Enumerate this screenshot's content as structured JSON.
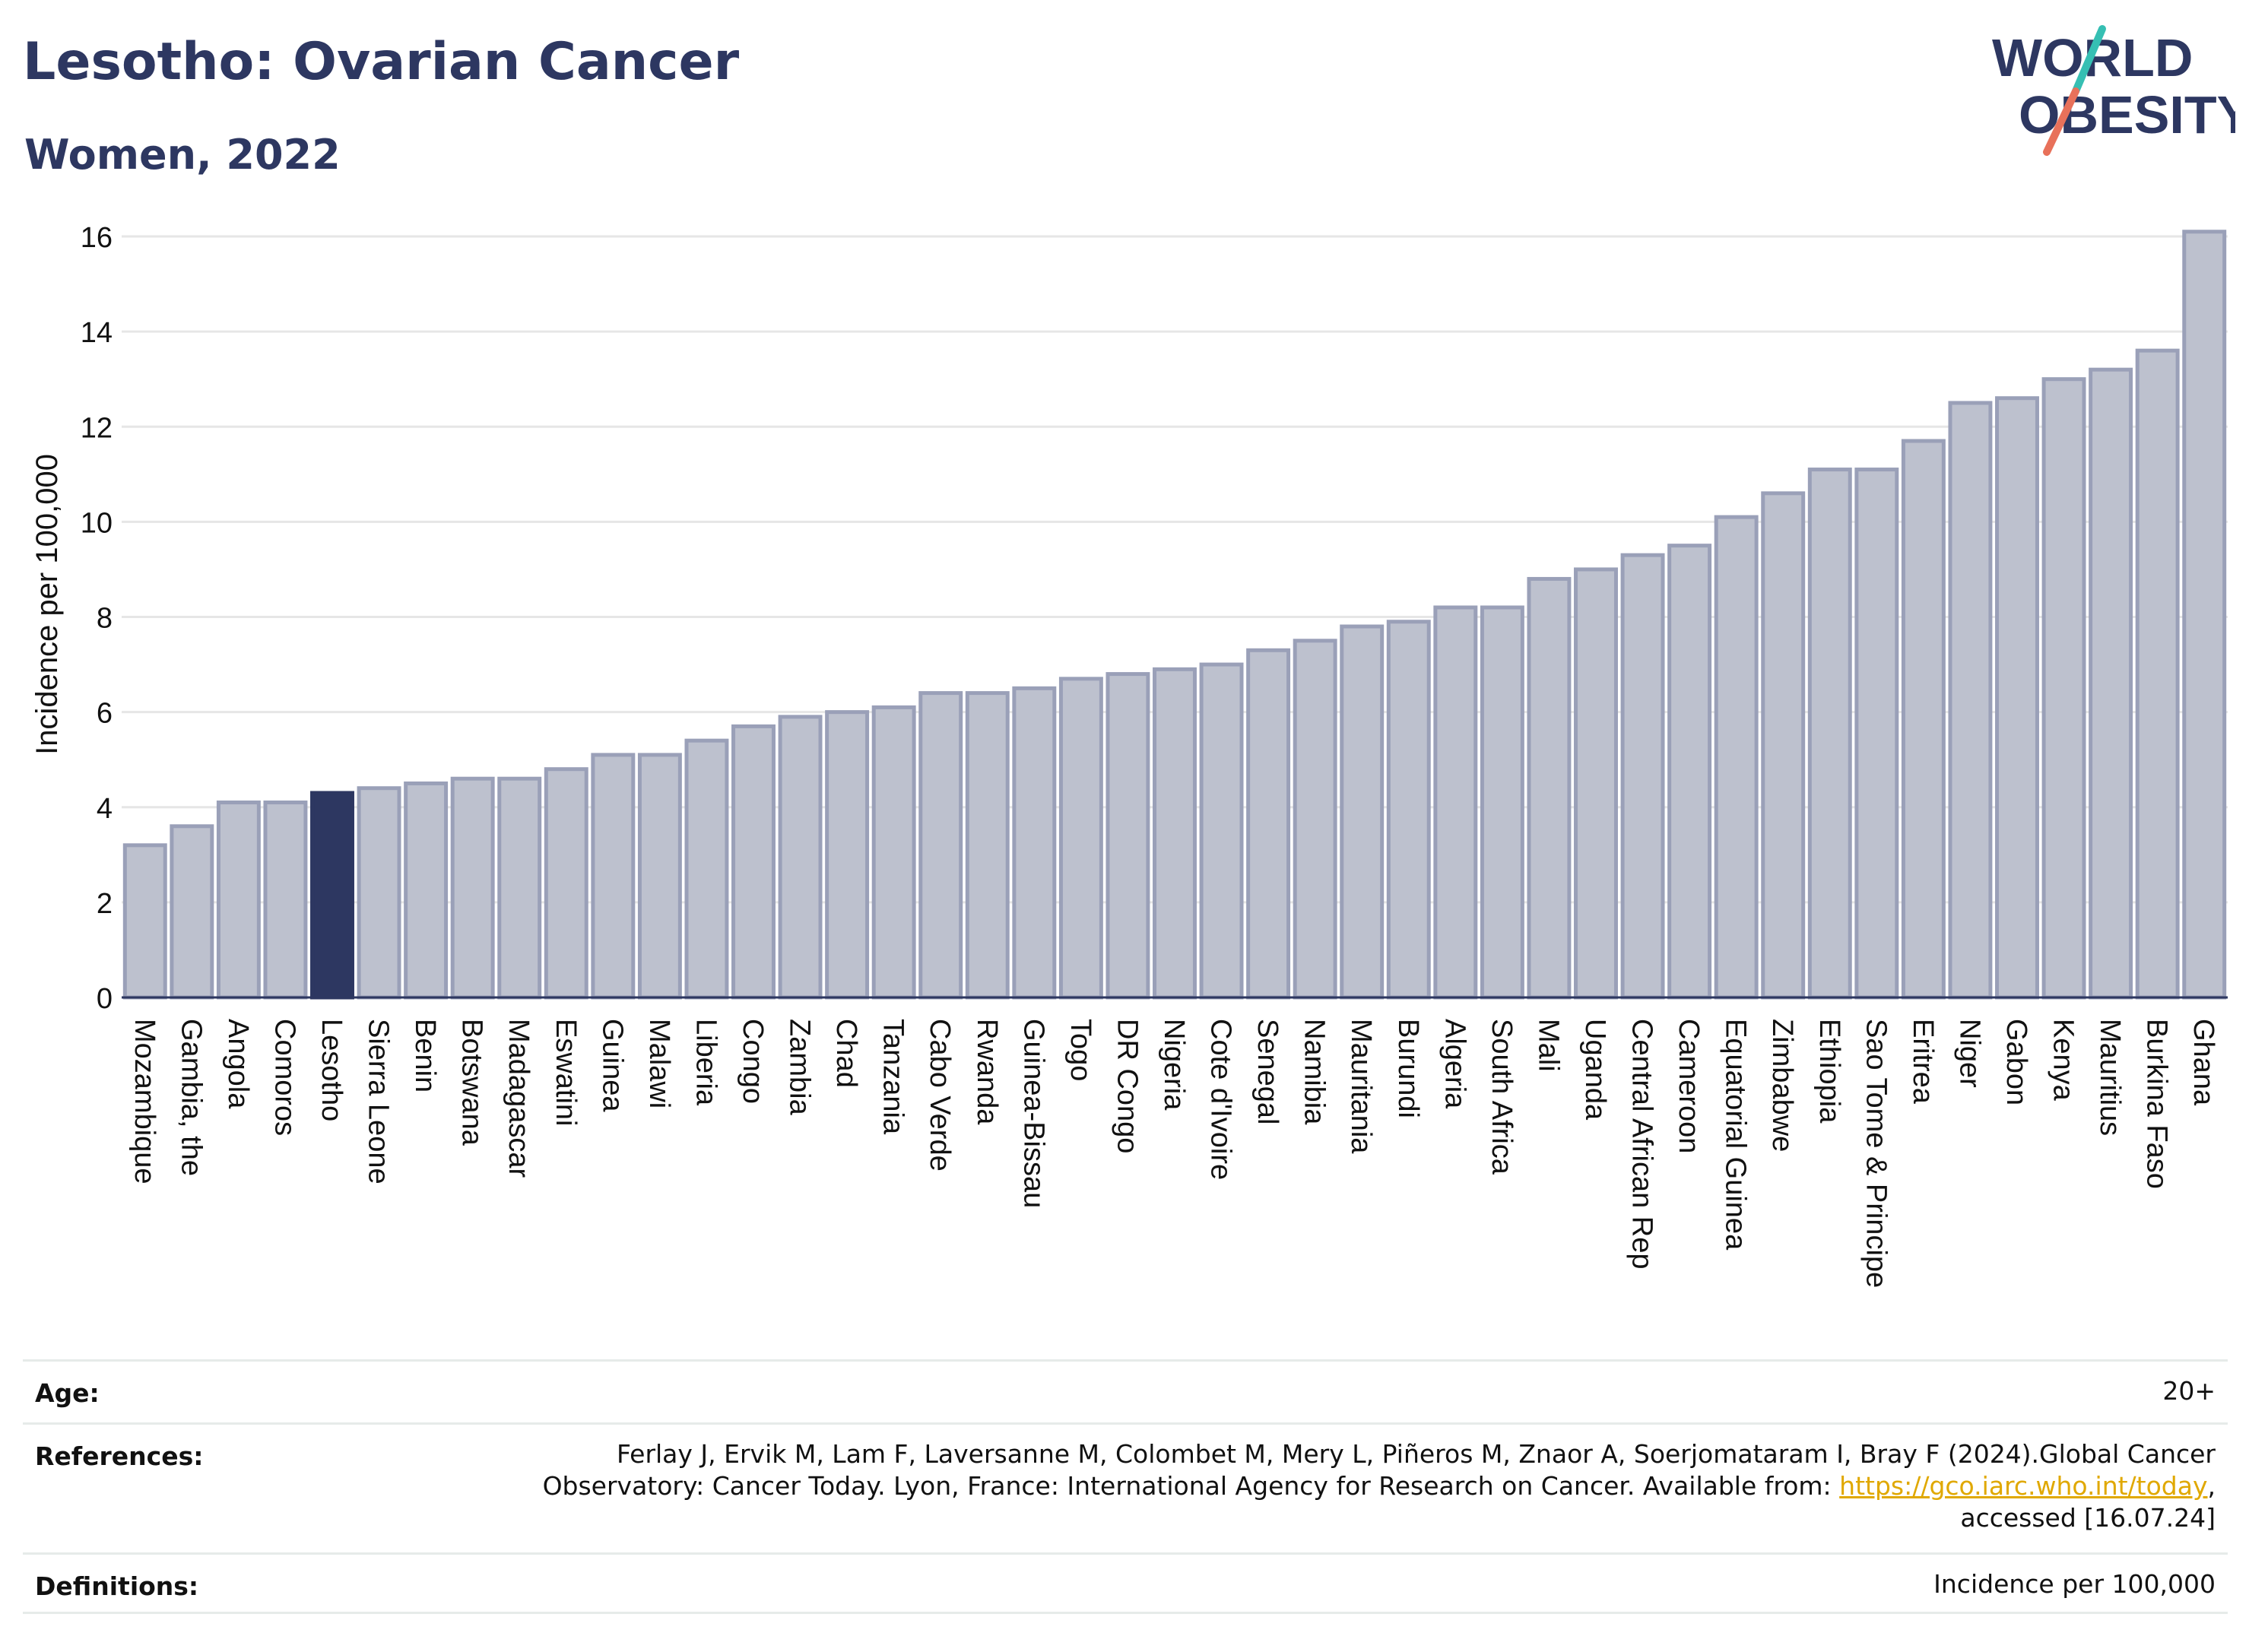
{
  "header": {
    "title": "Lesotho: Ovarian Cancer",
    "subtitle": "Women, 2022"
  },
  "logo": {
    "line1": "WORLD",
    "line2": "OBESITY"
  },
  "colors": {
    "bar": "#bdc1ce",
    "bar_stroke": "#9aa0b8",
    "highlight": "#2d3761",
    "grid": "#e6e6e6",
    "text": "#2d3761",
    "logo_teal": "#36bfb3",
    "logo_coral": "#e8715a",
    "link": "#e0a800"
  },
  "chart_data": {
    "type": "bar",
    "title": "Lesotho: Ovarian Cancer",
    "subtitle": "Women, 2022",
    "xlabel": "",
    "ylabel": "Incidence per 100,000",
    "ylim": [
      0,
      16.6
    ],
    "yticks": [
      0,
      2,
      4,
      6,
      8,
      10,
      12,
      14,
      16
    ],
    "grid": true,
    "highlight": "Lesotho",
    "categories": [
      "Mozambique",
      "Gambia, the",
      "Angola",
      "Comoros",
      "Lesotho",
      "Sierra Leone",
      "Benin",
      "Botswana",
      "Madagascar",
      "Eswatini",
      "Guinea",
      "Malawi",
      "Liberia",
      "Congo",
      "Zambia",
      "Chad",
      "Tanzania",
      "Cabo Verde",
      "Rwanda",
      "Guinea-Bissau",
      "Togo",
      "DR Congo",
      "Nigeria",
      "Cote d'Ivoire",
      "Senegal",
      "Namibia",
      "Mauritania",
      "Burundi",
      "Algeria",
      "South Africa",
      "Mali",
      "Uganda",
      "Central African Rep",
      "Cameroon",
      "Equatorial Guinea",
      "Zimbabwe",
      "Ethiopia",
      "Sao Tome & Principe",
      "Eritrea",
      "Niger",
      "Gabon",
      "Kenya",
      "Mauritius",
      "Burkina Faso",
      "Ghana"
    ],
    "values": [
      3.2,
      3.6,
      4.1,
      4.1,
      4.3,
      4.4,
      4.5,
      4.6,
      4.6,
      4.8,
      5.1,
      5.1,
      5.4,
      5.7,
      5.9,
      6.0,
      6.1,
      6.4,
      6.4,
      6.5,
      6.7,
      6.8,
      6.9,
      7.0,
      7.3,
      7.5,
      7.8,
      7.9,
      8.2,
      8.2,
      8.8,
      9.0,
      9.3,
      9.5,
      10.1,
      10.6,
      11.1,
      11.1,
      11.7,
      12.5,
      12.6,
      13.0,
      13.2,
      13.6,
      16.1
    ]
  },
  "info": {
    "age_label": "Age:",
    "age_value": "20+",
    "references_label": "References:",
    "references_line1": "Ferlay J, Ervik M, Lam F, Laversanne M, Colombet M, Mery L, Piñeros M, Znaor A, Soerjomataram I, Bray F (2024).Global Cancer",
    "references_line2_prefix": "Observatory: Cancer Today. Lyon, France: International Agency for Research on Cancer. Available from: ",
    "references_link": "https://gco.iarc.who.int/today",
    "references_line2_suffix": ",",
    "references_line3": "accessed [16.07.24]",
    "definitions_label": "Definitions:",
    "definitions_value": "Incidence per 100,000"
  }
}
